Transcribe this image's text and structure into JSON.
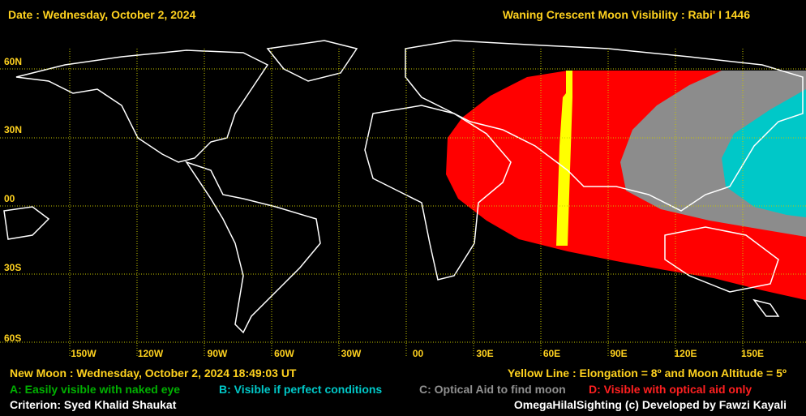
{
  "header": {
    "date": "Date : Wednesday, October 2, 2024",
    "title": "Waning Crescent Moon Visibility : Rabi' I 1446"
  },
  "map": {
    "lat_labels": [
      "60N",
      "30N",
      "00",
      "30S",
      "60S"
    ],
    "lon_labels": [
      "150W",
      "120W",
      "90W",
      "60W",
      "30W",
      "00",
      "30E",
      "60E",
      "90E",
      "120E",
      "150E"
    ]
  },
  "footer": {
    "new_moon": "New Moon : Wednesday, October 2, 2024  18:49:03  UT",
    "yellow_line": "Yellow Line : Elongation = 8º  and Moon Altitude = 5º",
    "legend": [
      "A: Easily visible with naked eye",
      "B: Visible if perfect conditions",
      "C: Optical Aid to find moon",
      "D: Visible with optical aid only"
    ],
    "criterion": "Criterion: Syed Khalid Shaukat",
    "credit": "OmegaHilalSighting  (c)  Developed by Fawzi Kayali"
  }
}
